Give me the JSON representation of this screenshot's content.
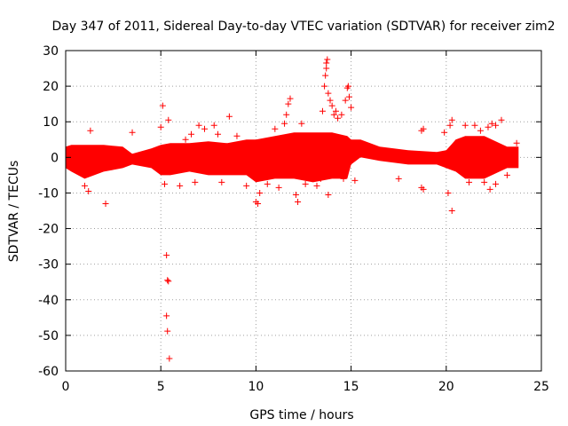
{
  "chart_data": {
    "type": "scatter",
    "title": "Day 347 of 2011, Sidereal Day-to-day VTEC variation (SDTVAR) for receiver zim2",
    "xlabel": "GPS time / hours",
    "ylabel": "SDTVAR / TECUs",
    "xlim": [
      0,
      25
    ],
    "ylim": [
      -60,
      30
    ],
    "xticks": [
      "0",
      "5",
      "10",
      "15",
      "20",
      "25"
    ],
    "yticks": [
      "30",
      "20",
      "10",
      "0",
      "-10",
      "-20",
      "-30",
      "-40",
      "-50",
      "-60"
    ],
    "grid": true,
    "marker": "+",
    "color": "#ff0000",
    "series": [
      {
        "name": "SDTVAR",
        "band": [
          {
            "x": 0.0,
            "lo": -3,
            "hi": 3
          },
          {
            "x": 0.3,
            "lo": -4,
            "hi": 3.5
          },
          {
            "x": 1.0,
            "lo": -6,
            "hi": 3.5
          },
          {
            "x": 2.0,
            "lo": -4,
            "hi": 3.5
          },
          {
            "x": 3.0,
            "lo": -3,
            "hi": 3
          },
          {
            "x": 3.5,
            "lo": -2,
            "hi": 1
          },
          {
            "x": 4.5,
            "lo": -3,
            "hi": 2.5
          },
          {
            "x": 5.0,
            "lo": -5,
            "hi": 3.5
          },
          {
            "x": 5.5,
            "lo": -5,
            "hi": 4
          },
          {
            "x": 6.5,
            "lo": -4,
            "hi": 4
          },
          {
            "x": 7.5,
            "lo": -5,
            "hi": 4.5
          },
          {
            "x": 8.5,
            "lo": -5,
            "hi": 4
          },
          {
            "x": 9.5,
            "lo": -5,
            "hi": 5
          },
          {
            "x": 10.0,
            "lo": -7,
            "hi": 5
          },
          {
            "x": 11.0,
            "lo": -6,
            "hi": 6
          },
          {
            "x": 12.0,
            "lo": -6,
            "hi": 7
          },
          {
            "x": 13.0,
            "lo": -7,
            "hi": 7
          },
          {
            "x": 14.0,
            "lo": -6,
            "hi": 7
          },
          {
            "x": 14.8,
            "lo": -6,
            "hi": 6
          },
          {
            "x": 15.0,
            "lo": -2,
            "hi": 5
          },
          {
            "x": 15.5,
            "lo": 0,
            "hi": 5
          },
          {
            "x": 16.5,
            "lo": -1,
            "hi": 3
          },
          {
            "x": 18.0,
            "lo": -2,
            "hi": 2
          },
          {
            "x": 19.5,
            "lo": -2,
            "hi": 1.5
          },
          {
            "x": 20.0,
            "lo": -3,
            "hi": 2
          },
          {
            "x": 20.5,
            "lo": -4,
            "hi": 5
          },
          {
            "x": 21.0,
            "lo": -6,
            "hi": 6
          },
          {
            "x": 22.0,
            "lo": -6,
            "hi": 6
          },
          {
            "x": 22.8,
            "lo": -4,
            "hi": 4
          },
          {
            "x": 23.2,
            "lo": -3,
            "hi": 3
          },
          {
            "x": 23.8,
            "lo": -3,
            "hi": 3
          }
        ],
        "outliers": [
          {
            "x": 1.3,
            "y": 7.5
          },
          {
            "x": 1.2,
            "y": -9.5
          },
          {
            "x": 1.0,
            "y": -8
          },
          {
            "x": 2.1,
            "y": -13
          },
          {
            "x": 3.5,
            "y": 7
          },
          {
            "x": 5.0,
            "y": 8.5
          },
          {
            "x": 5.1,
            "y": 14.5
          },
          {
            "x": 5.4,
            "y": 10.5
          },
          {
            "x": 5.3,
            "y": -27.5
          },
          {
            "x": 5.35,
            "y": -34.5
          },
          {
            "x": 5.4,
            "y": -34.8
          },
          {
            "x": 5.3,
            "y": -44.5
          },
          {
            "x": 5.35,
            "y": -48.8
          },
          {
            "x": 5.45,
            "y": -56.5
          },
          {
            "x": 5.2,
            "y": -7.5
          },
          {
            "x": 6.0,
            "y": -8
          },
          {
            "x": 6.3,
            "y": 5
          },
          {
            "x": 6.6,
            "y": 6.5
          },
          {
            "x": 7.0,
            "y": 9
          },
          {
            "x": 7.3,
            "y": 8
          },
          {
            "x": 6.8,
            "y": -7
          },
          {
            "x": 7.8,
            "y": 9
          },
          {
            "x": 8.0,
            "y": 6.5
          },
          {
            "x": 8.6,
            "y": 11.5
          },
          {
            "x": 8.2,
            "y": -7
          },
          {
            "x": 9.0,
            "y": 6
          },
          {
            "x": 9.5,
            "y": -8
          },
          {
            "x": 10.0,
            "y": -12.5
          },
          {
            "x": 10.1,
            "y": -13
          },
          {
            "x": 10.2,
            "y": -10
          },
          {
            "x": 10.6,
            "y": -7.5
          },
          {
            "x": 11.0,
            "y": 8
          },
          {
            "x": 11.2,
            "y": -8.5
          },
          {
            "x": 11.5,
            "y": 9.5
          },
          {
            "x": 11.7,
            "y": 15
          },
          {
            "x": 11.8,
            "y": 16.5
          },
          {
            "x": 11.6,
            "y": 12
          },
          {
            "x": 12.1,
            "y": -10.5
          },
          {
            "x": 12.2,
            "y": -12.5
          },
          {
            "x": 12.4,
            "y": 9.5
          },
          {
            "x": 12.6,
            "y": -7.5
          },
          {
            "x": 12.8,
            "y": -5.5
          },
          {
            "x": 13.2,
            "y": -8
          },
          {
            "x": 13.4,
            "y": -6
          },
          {
            "x": 13.5,
            "y": 13
          },
          {
            "x": 13.6,
            "y": 20
          },
          {
            "x": 13.65,
            "y": 23
          },
          {
            "x": 13.7,
            "y": 26.5
          },
          {
            "x": 13.75,
            "y": 27.5
          },
          {
            "x": 13.7,
            "y": 25
          },
          {
            "x": 13.8,
            "y": 18
          },
          {
            "x": 13.9,
            "y": 16
          },
          {
            "x": 14.0,
            "y": 14.5
          },
          {
            "x": 14.1,
            "y": 12
          },
          {
            "x": 14.2,
            "y": 13
          },
          {
            "x": 14.3,
            "y": 11
          },
          {
            "x": 13.8,
            "y": -10.5
          },
          {
            "x": 14.5,
            "y": 12
          },
          {
            "x": 14.7,
            "y": 16
          },
          {
            "x": 14.8,
            "y": 19.5
          },
          {
            "x": 14.85,
            "y": 20
          },
          {
            "x": 14.9,
            "y": 17
          },
          {
            "x": 15.0,
            "y": 14
          },
          {
            "x": 15.2,
            "y": -6.5
          },
          {
            "x": 14.6,
            "y": -6
          },
          {
            "x": 17.5,
            "y": -6
          },
          {
            "x": 18.7,
            "y": -8.5
          },
          {
            "x": 18.8,
            "y": -9
          },
          {
            "x": 18.7,
            "y": 7.5
          },
          {
            "x": 18.8,
            "y": 8
          },
          {
            "x": 19.9,
            "y": 7
          },
          {
            "x": 20.2,
            "y": 9
          },
          {
            "x": 20.3,
            "y": 10.5
          },
          {
            "x": 20.3,
            "y": -15
          },
          {
            "x": 20.1,
            "y": -10
          },
          {
            "x": 21.0,
            "y": 9
          },
          {
            "x": 21.2,
            "y": -7
          },
          {
            "x": 21.5,
            "y": 9
          },
          {
            "x": 21.8,
            "y": 7.5
          },
          {
            "x": 22.0,
            "y": -7
          },
          {
            "x": 22.2,
            "y": 8.5
          },
          {
            "x": 22.4,
            "y": 9.5
          },
          {
            "x": 22.6,
            "y": 9
          },
          {
            "x": 22.3,
            "y": -9
          },
          {
            "x": 22.6,
            "y": -7.5
          },
          {
            "x": 22.9,
            "y": 10.5
          },
          {
            "x": 23.2,
            "y": -5
          },
          {
            "x": 23.7,
            "y": 4
          }
        ]
      }
    ]
  }
}
